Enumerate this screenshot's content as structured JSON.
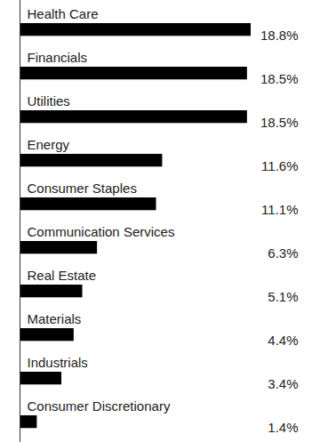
{
  "chart_data": {
    "type": "bar",
    "orientation": "horizontal",
    "categories": [
      "Health Care",
      "Financials",
      "Utilities",
      "Energy",
      "Consumer Staples",
      "Communication Services",
      "Real Estate",
      "Materials",
      "Industrials",
      "Consumer Discretionary"
    ],
    "values": [
      18.8,
      18.5,
      18.5,
      11.6,
      11.1,
      6.3,
      5.1,
      4.4,
      3.4,
      1.4
    ],
    "value_labels": [
      "18.8%",
      "18.5%",
      "18.5%",
      "11.6%",
      "11.1%",
      "6.3%",
      "5.1%",
      "4.4%",
      "3.4%",
      "1.4%"
    ],
    "color": "#000000",
    "xlim": [
      0,
      18.8
    ],
    "xticks": [],
    "tick_labels": false,
    "data_labels": true,
    "grid": false
  }
}
